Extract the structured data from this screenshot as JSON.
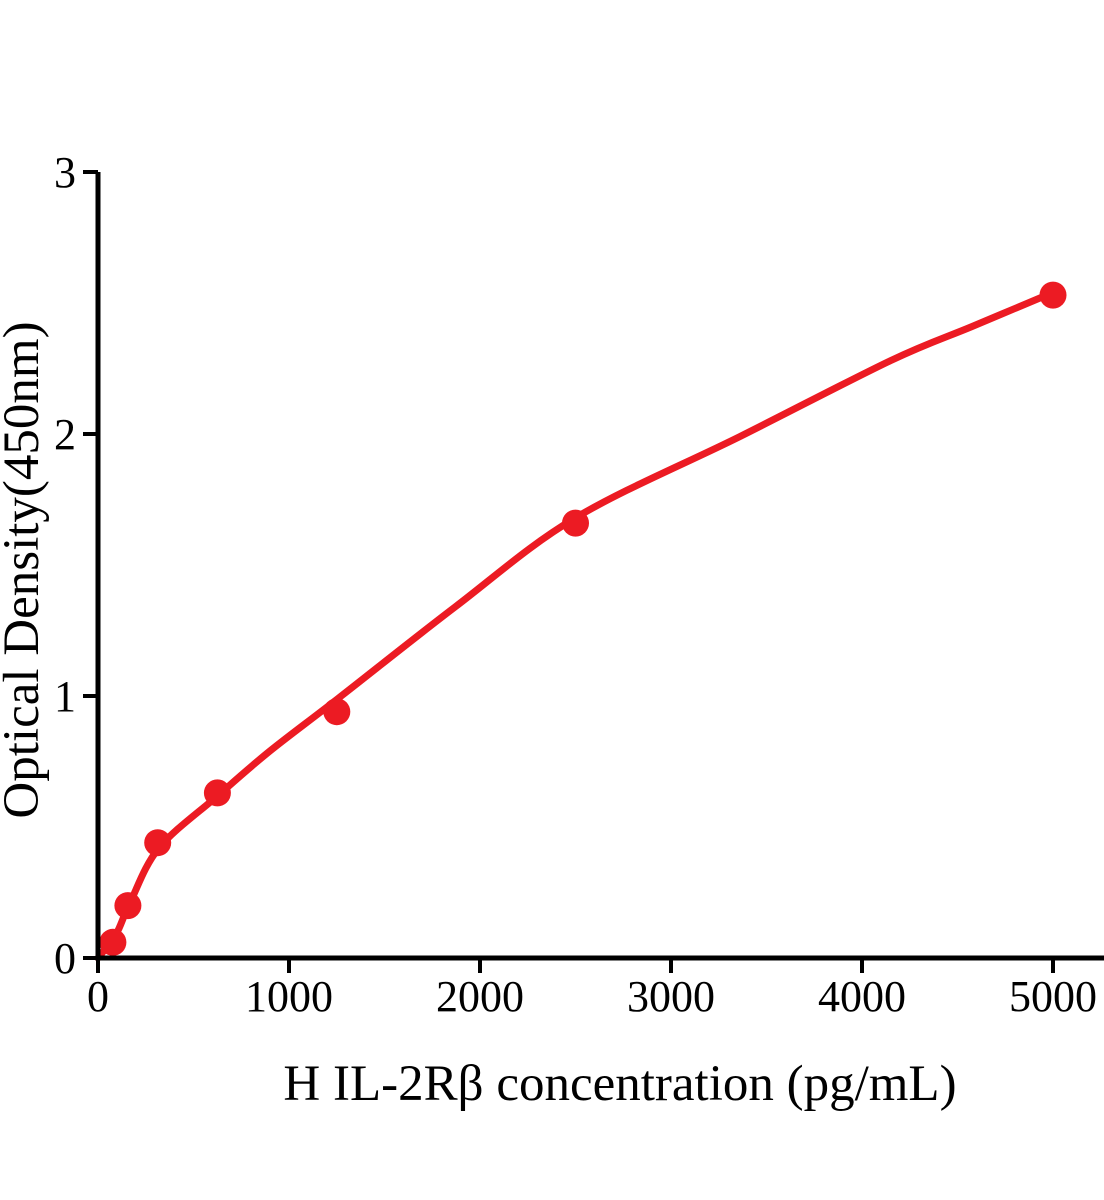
{
  "chart_data": {
    "type": "scatter",
    "title": "",
    "xlabel": "H IL-2Rβ concentration (pg/mL)",
    "ylabel": "Optical Density(450nm)",
    "xlim": [
      0,
      5267
    ],
    "ylim": [
      0,
      3
    ],
    "x_ticks": [
      0,
      1000,
      2000,
      3000,
      4000,
      5000
    ],
    "y_ticks": [
      0,
      1,
      2,
      3
    ],
    "grid": false,
    "legend": "none",
    "accent_color": "#EC1B23",
    "axis_color": "#000000",
    "series": [
      {
        "name": "standard-points",
        "type": "scatter",
        "color": "#EC1B23",
        "marker": "circle",
        "x": [
          78.1,
          156.3,
          312.5,
          625,
          1250,
          2500,
          5000
        ],
        "y": [
          0.06,
          0.2,
          0.44,
          0.63,
          0.94,
          1.66,
          2.53
        ]
      },
      {
        "name": "fit-curve",
        "type": "line",
        "color": "#EC1B23",
        "x": [
          0,
          94,
          167,
          319,
          628,
          900,
          1256,
          1870,
          2500,
          3360,
          4150,
          4575,
          5000
        ],
        "y": [
          0.0,
          0.09,
          0.21,
          0.42,
          0.62,
          0.79,
          0.99,
          1.34,
          1.68,
          1.99,
          2.28,
          2.41,
          2.54
        ]
      }
    ]
  }
}
